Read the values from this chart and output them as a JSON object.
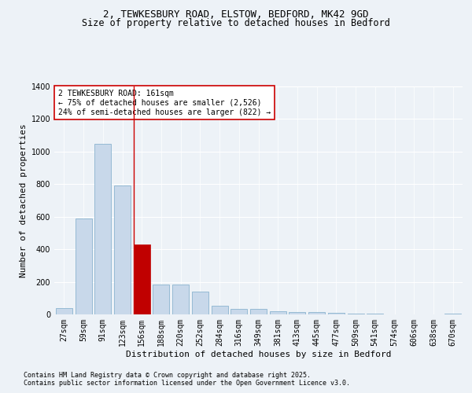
{
  "title_line1": "2, TEWKESBURY ROAD, ELSTOW, BEDFORD, MK42 9GD",
  "title_line2": "Size of property relative to detached houses in Bedford",
  "xlabel": "Distribution of detached houses by size in Bedford",
  "ylabel": "Number of detached properties",
  "categories": [
    "27sqm",
    "59sqm",
    "91sqm",
    "123sqm",
    "156sqm",
    "188sqm",
    "220sqm",
    "252sqm",
    "284sqm",
    "316sqm",
    "349sqm",
    "381sqm",
    "413sqm",
    "445sqm",
    "477sqm",
    "509sqm",
    "541sqm",
    "574sqm",
    "606sqm",
    "638sqm",
    "670sqm"
  ],
  "values": [
    40,
    590,
    1050,
    790,
    430,
    185,
    185,
    140,
    55,
    35,
    35,
    20,
    15,
    15,
    10,
    5,
    3,
    2,
    1,
    1,
    5
  ],
  "bar_color_normal": "#c8d8ea",
  "bar_color_highlight": "#c00000",
  "bar_edge_color": "#7aaac8",
  "highlight_index": 4,
  "red_line_index": 4,
  "annotation_text": "2 TEWKESBURY ROAD: 161sqm\n← 75% of detached houses are smaller (2,526)\n24% of semi-detached houses are larger (822) →",
  "ylim": [
    0,
    1400
  ],
  "yticks": [
    0,
    200,
    400,
    600,
    800,
    1000,
    1200,
    1400
  ],
  "footer_line1": "Contains HM Land Registry data © Crown copyright and database right 2025.",
  "footer_line2": "Contains public sector information licensed under the Open Government Licence v3.0.",
  "background_color": "#edf2f7",
  "grid_color": "#ffffff",
  "title_fontsize": 9,
  "subtitle_fontsize": 8.5,
  "axis_label_fontsize": 8,
  "tick_fontsize": 7,
  "annotation_fontsize": 7,
  "footer_fontsize": 6
}
